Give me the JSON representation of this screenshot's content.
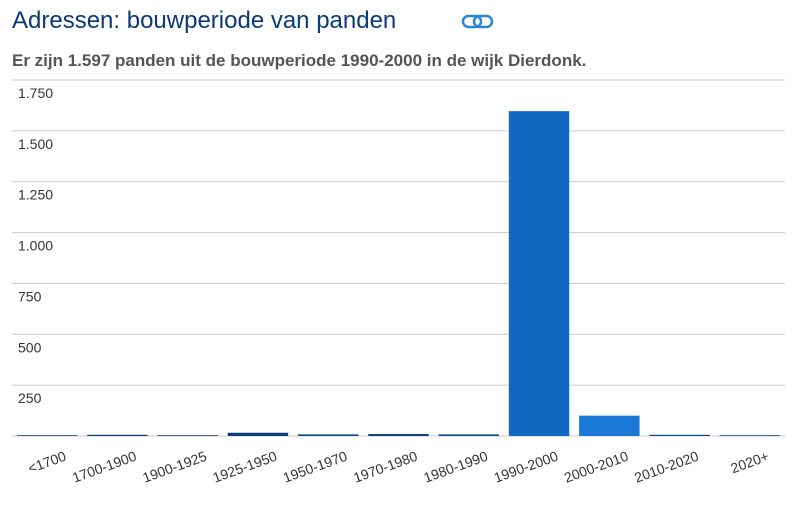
{
  "chart_data": {
    "type": "bar",
    "title": "Adressen: bouwperiode van panden",
    "subtitle": "Er zijn 1.597 panden uit de bouwperiode 1990-2000 in de wijk Dierdonk.",
    "categories": [
      "<1700",
      "1700-1900",
      "1900-1925",
      "1925-1950",
      "1950-1970",
      "1970-1980",
      "1980-1990",
      "1990-2000",
      "2000-2010",
      "2010-2020",
      "2020+"
    ],
    "values": [
      4,
      6,
      4,
      16,
      8,
      10,
      8,
      1597,
      100,
      6,
      4
    ],
    "colors": [
      "#0f3d73",
      "#0f3d73",
      "#0f3d73",
      "#0f3d73",
      "#0f4c8c",
      "#0f4580",
      "#0f4c8c",
      "#1169c2",
      "#1a78d6",
      "#0f4c8c",
      "#0f4c8c"
    ],
    "ylim": [
      0,
      1750
    ],
    "yticks": [
      {
        "value": 250,
        "label": "250"
      },
      {
        "value": 500,
        "label": "500"
      },
      {
        "value": 750,
        "label": "750"
      },
      {
        "value": 1000,
        "label": "1.000"
      },
      {
        "value": 1250,
        "label": "1.250"
      },
      {
        "value": 1500,
        "label": "1.500"
      },
      {
        "value": 1750,
        "label": "1.750"
      }
    ],
    "grid": true
  }
}
